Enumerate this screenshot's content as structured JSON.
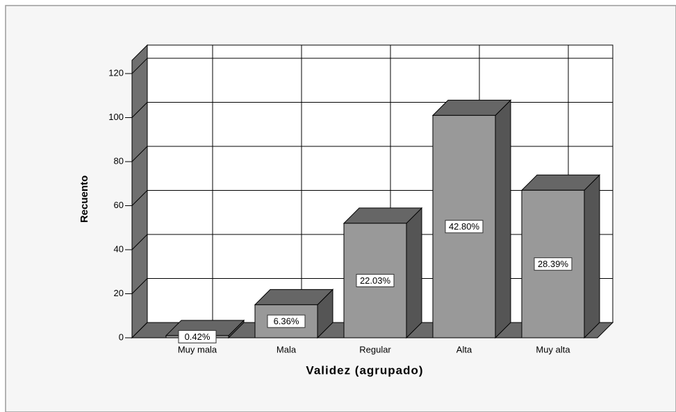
{
  "chart_data": {
    "type": "bar3d",
    "x_label": "Validez (agrupado)",
    "y_label": "Recuento",
    "categories": [
      "Muy mala",
      "Mala",
      "Regular",
      "Alta",
      "Muy alta"
    ],
    "values": [
      1,
      15,
      52,
      101,
      67
    ],
    "percentages": [
      0.42,
      6.36,
      22.03,
      42.8,
      28.39
    ],
    "percentage_labels": [
      "0.42%",
      "6.36%",
      "22.03%",
      "42.80%",
      "28.39%"
    ],
    "color": "#999999",
    "ylim": [
      0,
      126
    ],
    "yticks": [
      0,
      20,
      40,
      60,
      80,
      100,
      120
    ],
    "grid": true
  }
}
